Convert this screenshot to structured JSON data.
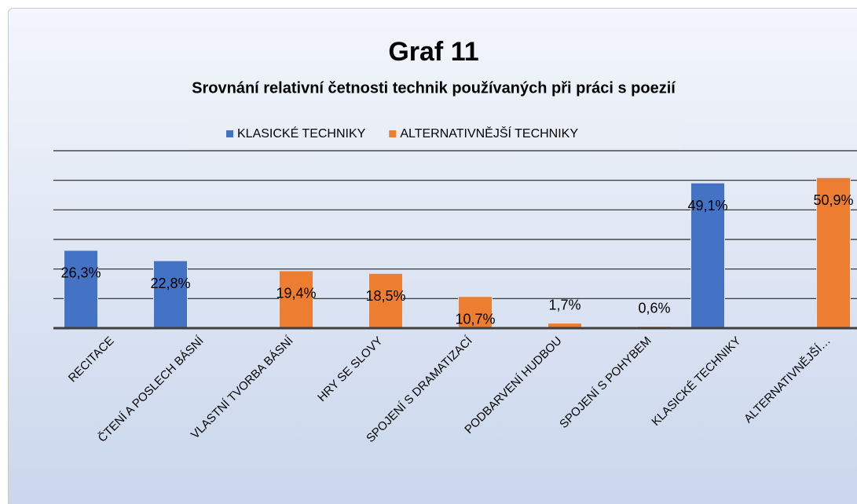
{
  "chart_data": {
    "type": "bar",
    "title": "Graf 11",
    "subtitle": "Srovnání relativní četnosti technik používaných při práci s poezií",
    "categories": [
      "RECITACE",
      "ČTENÍ A POSLECH BÁSNÍ",
      "VLASTNÍ TVORBA BÁSNÍ",
      "HRY SE SLOVY",
      "SPOJENÍ S DRAMATIZACÍ",
      "PODBARVENÍ HUDBOU",
      "SPOJENÍ S POHYBEM",
      "KLASICKÉ TECHNIKY",
      "ALTERNATIVNĚJŠÍ…"
    ],
    "series": [
      {
        "name": "KLASICKÉ TECHNIKY",
        "color": "#4472c4",
        "values": [
          26.3,
          22.8,
          null,
          null,
          null,
          null,
          null,
          49.1,
          null
        ],
        "value_labels": [
          "26,3%",
          "22,8%",
          null,
          null,
          null,
          null,
          null,
          "49,1%",
          null
        ]
      },
      {
        "name": "ALTERNATIVNĚJŠÍ TECHNIKY",
        "color": "#ed7d31",
        "values": [
          null,
          null,
          19.4,
          18.5,
          10.7,
          1.7,
          0.6,
          null,
          50.9
        ],
        "value_labels": [
          null,
          null,
          "19,4%",
          "18,5%",
          "10,7%",
          "1,7%",
          "0,6%",
          null,
          "50,9%"
        ]
      }
    ],
    "ylim": [
      0,
      60
    ],
    "yticks": [
      0,
      10,
      20,
      30,
      40,
      50,
      60
    ],
    "grid": true,
    "legend": "top"
  }
}
